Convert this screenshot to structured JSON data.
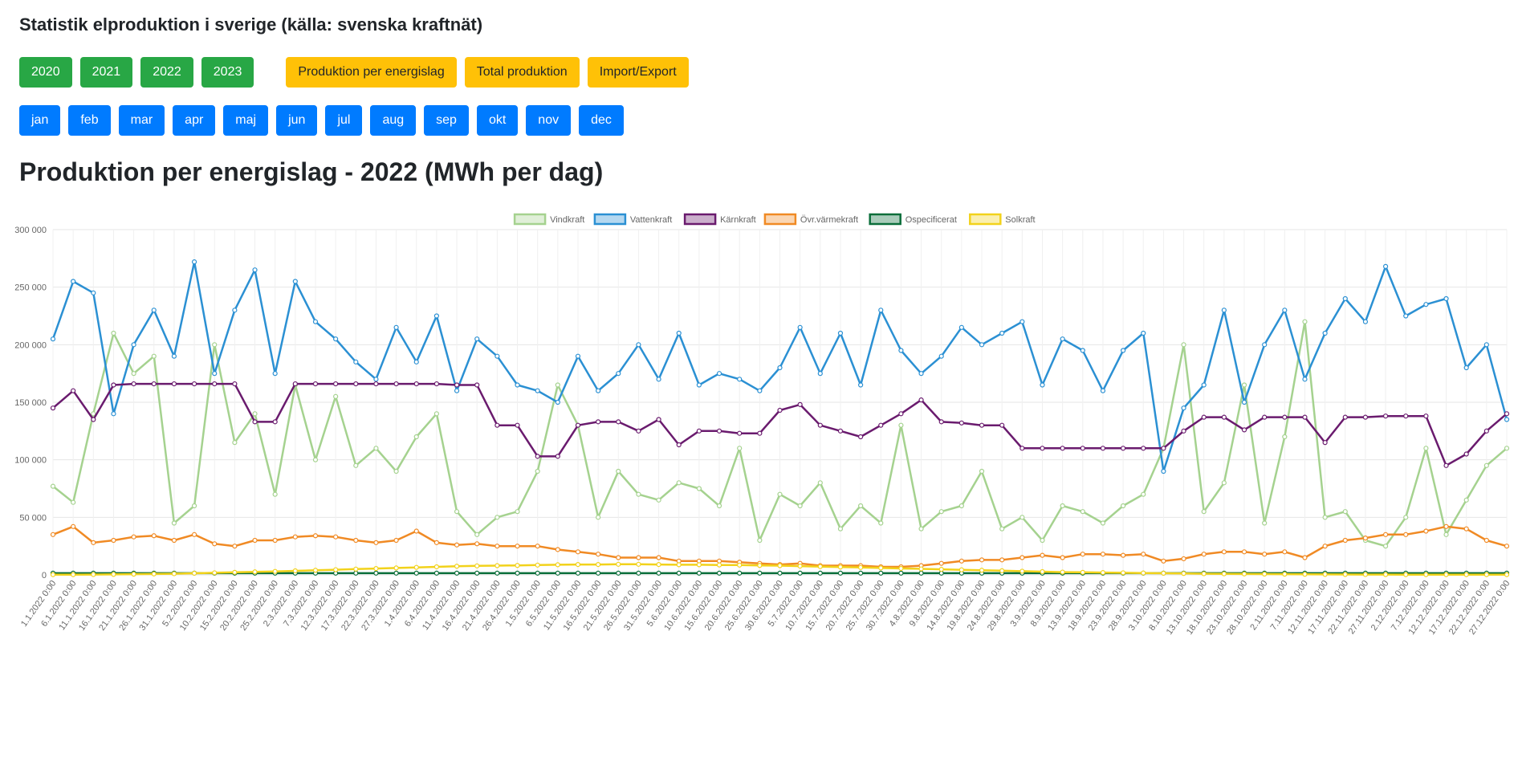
{
  "header": {
    "title": "Statistik elproduktion i sverige (källa: svenska kraftnät)"
  },
  "years": [
    "2020",
    "2021",
    "2022",
    "2023"
  ],
  "views": [
    "Produktion per energislag",
    "Total produktion",
    "Import/Export"
  ],
  "months": [
    "jan",
    "feb",
    "mar",
    "apr",
    "maj",
    "jun",
    "jul",
    "aug",
    "sep",
    "okt",
    "nov",
    "dec"
  ],
  "colors": {
    "green": "#28a745",
    "yellow": "#ffc107",
    "blue": "#007bff"
  },
  "chart_data": {
    "type": "line",
    "title": "Produktion per energislag - 2022 (MWh per dag)",
    "ylim": [
      0,
      300000
    ],
    "yticks": [
      0,
      50000,
      100000,
      150000,
      200000,
      250000,
      300000
    ],
    "ytick_labels": [
      "0",
      "50 000",
      "100 000",
      "150 000",
      "200 000",
      "250 000",
      "300 000"
    ],
    "x": [
      "1.1.2022 0:00",
      "6.1.2022 0:00",
      "11.1.2022 0:00",
      "16.1.2022 0:00",
      "21.1.2022 0:00",
      "26.1.2022 0:00",
      "31.1.2022 0:00",
      "5.2.2022 0:00",
      "10.2.2022 0:00",
      "15.2.2022 0:00",
      "20.2.2022 0:00",
      "25.2.2022 0:00",
      "2.3.2022 0:00",
      "7.3.2022 0:00",
      "12.3.2022 0:00",
      "17.3.2022 0:00",
      "22.3.2022 0:00",
      "27.3.2022 0:00",
      "1.4.2022 0:00",
      "6.4.2022 0:00",
      "11.4.2022 0:00",
      "16.4.2022 0:00",
      "21.4.2022 0:00",
      "26.4.2022 0:00",
      "1.5.2022 0:00",
      "6.5.2022 0:00",
      "11.5.2022 0:00",
      "16.5.2022 0:00",
      "21.5.2022 0:00",
      "26.5.2022 0:00",
      "31.5.2022 0:00",
      "5.6.2022 0:00",
      "10.6.2022 0:00",
      "15.6.2022 0:00",
      "20.6.2022 0:00",
      "25.6.2022 0:00",
      "30.6.2022 0:00",
      "5.7.2022 0:00",
      "10.7.2022 0:00",
      "15.7.2022 0:00",
      "20.7.2022 0:00",
      "25.7.2022 0:00",
      "30.7.2022 0:00",
      "4.8.2022 0:00",
      "9.8.2022 0:00",
      "14.8.2022 0:00",
      "19.8.2022 0:00",
      "24.8.2022 0:00",
      "29.8.2022 0:00",
      "3.9.2022 0:00",
      "8.9.2022 0:00",
      "13.9.2022 0:00",
      "18.9.2022 0:00",
      "23.9.2022 0:00",
      "28.9.2022 0:00",
      "3.10.2022 0:00",
      "8.10.2022 0:00",
      "13.10.2022 0:00",
      "18.10.2022 0:00",
      "23.10.2022 0:00",
      "28.10.2022 0:00",
      "2.11.2022 0:00",
      "7.11.2022 0:00",
      "12.11.2022 0:00",
      "17.11.2022 0:00",
      "22.11.2022 0:00",
      "27.11.2022 0:00",
      "2.12.2022 0:00",
      "7.12.2022 0:00",
      "12.12.2022 0:00",
      "17.12.2022 0:00",
      "22.12.2022 0:00",
      "27.12.2022 0:00"
    ],
    "series": [
      {
        "name": "Vindkraft",
        "color": "#a5d28f",
        "values": [
          77000,
          63000,
          140000,
          210000,
          175000,
          190000,
          45000,
          60000,
          200000,
          115000,
          140000,
          70000,
          165000,
          100000,
          155000,
          95000,
          110000,
          90000,
          120000,
          140000,
          55000,
          35000,
          50000,
          55000,
          90000,
          165000,
          130000,
          50000,
          90000,
          70000,
          65000,
          80000,
          75000,
          60000,
          110000,
          30000,
          70000,
          60000,
          80000,
          40000,
          60000,
          45000,
          130000,
          40000,
          55000,
          60000,
          90000,
          40000,
          50000,
          30000,
          60000,
          55000,
          45000,
          60000,
          70000,
          110000,
          200000,
          55000,
          80000,
          165000,
          45000,
          120000,
          220000,
          50000,
          55000,
          30000,
          25000,
          50000,
          110000,
          35000,
          65000,
          95000,
          110000
        ]
      },
      {
        "name": "Vattenkraft",
        "color": "#2b90d3",
        "values": [
          205000,
          255000,
          245000,
          140000,
          200000,
          230000,
          190000,
          272000,
          175000,
          230000,
          265000,
          175000,
          255000,
          220000,
          205000,
          185000,
          170000,
          215000,
          185000,
          225000,
          160000,
          205000,
          190000,
          165000,
          160000,
          150000,
          190000,
          160000,
          175000,
          200000,
          170000,
          210000,
          165000,
          175000,
          170000,
          160000,
          180000,
          215000,
          175000,
          210000,
          165000,
          230000,
          195000,
          175000,
          190000,
          215000,
          200000,
          210000,
          220000,
          165000,
          205000,
          195000,
          160000,
          195000,
          210000,
          90000,
          145000,
          165000,
          230000,
          150000,
          200000,
          230000,
          170000,
          210000,
          240000,
          220000,
          268000,
          225000,
          235000,
          240000,
          180000,
          200000,
          135000
        ]
      },
      {
        "name": "Kärnkraft",
        "color": "#6a1b6e",
        "values": [
          145000,
          160000,
          135000,
          165000,
          166000,
          166000,
          166000,
          166000,
          166000,
          166000,
          133000,
          133000,
          166000,
          166000,
          166000,
          166000,
          166000,
          166000,
          166000,
          166000,
          165000,
          165000,
          130000,
          130000,
          103000,
          103000,
          130000,
          133000,
          133000,
          125000,
          135000,
          113000,
          125000,
          125000,
          123000,
          123000,
          143000,
          148000,
          130000,
          125000,
          120000,
          130000,
          140000,
          152000,
          133000,
          132000,
          130000,
          130000,
          110000,
          110000,
          110000,
          110000,
          110000,
          110000,
          110000,
          110000,
          125000,
          137000,
          137000,
          126000,
          137000,
          137000,
          137000,
          115000,
          137000,
          137000,
          138000,
          138000,
          138000,
          95000,
          105000,
          125000,
          140000
        ]
      },
      {
        "name": "Övr.värmekraft",
        "color": "#f08a24",
        "values": [
          35000,
          42000,
          28000,
          30000,
          33000,
          34000,
          30000,
          35000,
          27000,
          25000,
          30000,
          30000,
          33000,
          34000,
          33000,
          30000,
          28000,
          30000,
          38000,
          28000,
          26000,
          27000,
          25000,
          25000,
          25000,
          22000,
          20000,
          18000,
          15000,
          15000,
          15000,
          12000,
          12000,
          12000,
          11000,
          10000,
          9000,
          10000,
          8000,
          8000,
          8000,
          7000,
          7000,
          8000,
          10000,
          12000,
          13000,
          13000,
          15000,
          17000,
          15000,
          18000,
          18000,
          17000,
          18000,
          12000,
          14000,
          18000,
          20000,
          20000,
          18000,
          20000,
          15000,
          25000,
          30000,
          32000,
          35000,
          35000,
          38000,
          42000,
          40000,
          30000,
          25000
        ]
      },
      {
        "name": "Ospecificerat",
        "color": "#0a6e3a",
        "values": [
          1500,
          1500,
          1500,
          1500,
          1500,
          1500,
          1500,
          1500,
          1500,
          1500,
          1500,
          1500,
          1500,
          1500,
          1500,
          1500,
          1500,
          1500,
          1500,
          1500,
          1500,
          1500,
          1500,
          1500,
          1500,
          1500,
          1500,
          1500,
          1500,
          1500,
          1500,
          1500,
          1500,
          1500,
          1500,
          1500,
          1500,
          1500,
          1500,
          1500,
          1500,
          1500,
          1500,
          1500,
          1500,
          1500,
          1500,
          1500,
          1500,
          1500,
          1500,
          1500,
          1500,
          1500,
          1500,
          1500,
          1500,
          1500,
          1500,
          1500,
          1500,
          1500,
          1500,
          1500,
          1500,
          1500,
          1500,
          1500,
          1500,
          1500,
          1500,
          1500,
          1500
        ]
      },
      {
        "name": "Solkraft",
        "color": "#f2d21b",
        "values": [
          200,
          200,
          300,
          400,
          600,
          800,
          1000,
          1400,
          1800,
          2200,
          2600,
          3000,
          3500,
          4000,
          4500,
          5000,
          5500,
          6000,
          6500,
          7000,
          7500,
          7800,
          8000,
          8200,
          8500,
          8800,
          9000,
          9000,
          9200,
          9200,
          9000,
          8800,
          8800,
          8600,
          8500,
          8200,
          8000,
          7600,
          7200,
          6800,
          6400,
          6000,
          5600,
          5200,
          4800,
          4400,
          4000,
          3600,
          3200,
          2800,
          2400,
          2200,
          2000,
          1800,
          1600,
          1400,
          1200,
          1000,
          900,
          800,
          700,
          600,
          500,
          400,
          350,
          300,
          250,
          200,
          200,
          200,
          200,
          200,
          200
        ]
      }
    ]
  }
}
